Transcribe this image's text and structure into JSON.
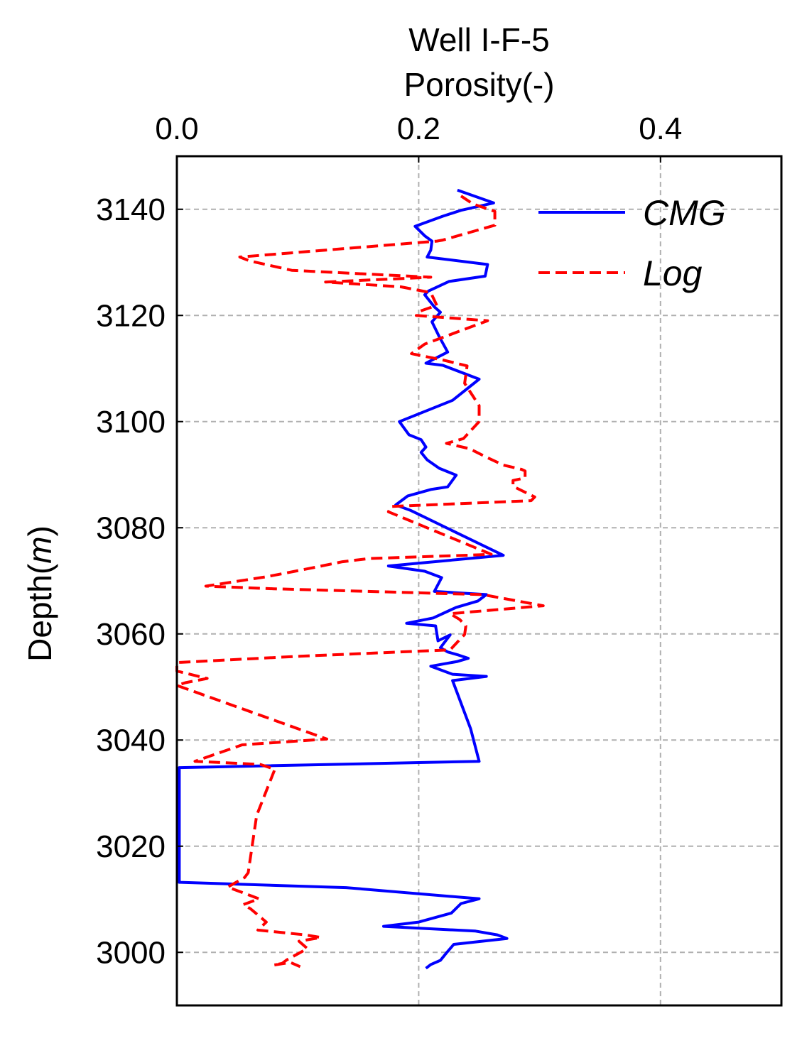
{
  "chart_data": {
    "type": "line",
    "title": "Well I-F-5",
    "xlabel": "Porosity(-)",
    "ylabel_prefix": "Depth(",
    "ylabel_unit": "m",
    "ylabel_suffix": ")",
    "xlim": [
      0.0,
      0.5
    ],
    "ylim": [
      2990,
      3150
    ],
    "x_axis_position": "top",
    "y_axis_inverted": true,
    "xticks": [
      "0.0",
      "0.2",
      "0.4"
    ],
    "xtick_values": [
      0.0,
      0.2,
      0.4
    ],
    "yticks": [
      "3000",
      "3020",
      "3040",
      "3060",
      "3080",
      "3100",
      "3120",
      "3140"
    ],
    "ytick_values": [
      3000,
      3020,
      3040,
      3060,
      3080,
      3100,
      3120,
      3140
    ],
    "grid": true,
    "legend_position": "top-right",
    "series": [
      {
        "name": "CMG",
        "color": "#0000ff",
        "dash": "solid",
        "points": [
          [
            0.232,
            3143.6
          ],
          [
            0.262,
            3141.2
          ],
          [
            0.235,
            3139.8
          ],
          [
            0.22,
            3138.7
          ],
          [
            0.197,
            3136.8
          ],
          [
            0.205,
            3135.0
          ],
          [
            0.211,
            3134.0
          ],
          [
            0.21,
            3132.3
          ],
          [
            0.207,
            3131.0
          ],
          [
            0.257,
            3129.6
          ],
          [
            0.255,
            3127.4
          ],
          [
            0.225,
            3126.4
          ],
          [
            0.208,
            3124.6
          ],
          [
            0.205,
            3123.9
          ],
          [
            0.213,
            3121.6
          ],
          [
            0.218,
            3120.6
          ],
          [
            0.211,
            3118.8
          ],
          [
            0.217,
            3116.0
          ],
          [
            0.224,
            3113.1
          ],
          [
            0.206,
            3111.0
          ],
          [
            0.22,
            3110.6
          ],
          [
            0.25,
            3108.0
          ],
          [
            0.228,
            3104.0
          ],
          [
            0.184,
            3100.0
          ],
          [
            0.192,
            3097.5
          ],
          [
            0.202,
            3096.6
          ],
          [
            0.206,
            3095.2
          ],
          [
            0.202,
            3094.2
          ],
          [
            0.207,
            3092.8
          ],
          [
            0.217,
            3091.2
          ],
          [
            0.231,
            3089.9
          ],
          [
            0.224,
            3087.7
          ],
          [
            0.21,
            3087.2
          ],
          [
            0.191,
            3086.0
          ],
          [
            0.181,
            3084.3
          ],
          [
            0.193,
            3083.3
          ],
          [
            0.27,
            3074.8
          ],
          [
            0.175,
            3072.8
          ],
          [
            0.205,
            3071.8
          ],
          [
            0.219,
            3070.6
          ],
          [
            0.213,
            3068.0
          ],
          [
            0.256,
            3067.4
          ],
          [
            0.249,
            3066.2
          ],
          [
            0.231,
            3065.0
          ],
          [
            0.212,
            3063.0
          ],
          [
            0.19,
            3062.0
          ],
          [
            0.214,
            3061.5
          ],
          [
            0.216,
            3058.7
          ],
          [
            0.226,
            3059.8
          ],
          [
            0.218,
            3057.4
          ],
          [
            0.224,
            3056.6
          ],
          [
            0.233,
            3056.0
          ],
          [
            0.241,
            3055.4
          ],
          [
            0.232,
            3054.8
          ],
          [
            0.21,
            3053.9
          ],
          [
            0.228,
            3052.4
          ],
          [
            0.256,
            3052.0
          ],
          [
            0.228,
            3051.2
          ],
          [
            0.243,
            3042.1
          ],
          [
            0.25,
            3036.0
          ],
          [
            0.002,
            3034.8
          ],
          [
            0.002,
            3013.2
          ],
          [
            0.14,
            3012.2
          ],
          [
            0.25,
            3010.1
          ],
          [
            0.235,
            3009.2
          ],
          [
            0.227,
            3007.4
          ],
          [
            0.2,
            3005.7
          ],
          [
            0.171,
            3004.9
          ],
          [
            0.247,
            3004.0
          ],
          [
            0.265,
            3003.3
          ],
          [
            0.273,
            3002.6
          ],
          [
            0.229,
            3001.5
          ],
          [
            0.223,
            2999.9
          ],
          [
            0.218,
            2998.5
          ],
          [
            0.21,
            2997.7
          ],
          [
            0.206,
            2997.0
          ]
        ]
      },
      {
        "name": "Log",
        "color": "#ff0000",
        "dash": "dashed",
        "points": [
          [
            0.235,
            3142.5
          ],
          [
            0.245,
            3141.0
          ],
          [
            0.263,
            3139.6
          ],
          [
            0.263,
            3137.0
          ],
          [
            0.22,
            3134.2
          ],
          [
            0.215,
            3134.0
          ],
          [
            0.052,
            3131.0
          ],
          [
            0.06,
            3130.3
          ],
          [
            0.095,
            3128.5
          ],
          [
            0.21,
            3127.2
          ],
          [
            0.123,
            3126.3
          ],
          [
            0.185,
            3125.4
          ],
          [
            0.21,
            3124.3
          ],
          [
            0.215,
            3121.9
          ],
          [
            0.201,
            3120.8
          ],
          [
            0.198,
            3120.0
          ],
          [
            0.257,
            3119.0
          ],
          [
            0.205,
            3114.6
          ],
          [
            0.194,
            3112.8
          ],
          [
            0.22,
            3111.6
          ],
          [
            0.24,
            3110.5
          ],
          [
            0.238,
            3107.2
          ],
          [
            0.25,
            3103.0
          ],
          [
            0.25,
            3100.0
          ],
          [
            0.237,
            3096.8
          ],
          [
            0.223,
            3095.9
          ],
          [
            0.242,
            3094.9
          ],
          [
            0.256,
            3093.3
          ],
          [
            0.27,
            3091.8
          ],
          [
            0.285,
            3091.0
          ],
          [
            0.288,
            3090.7
          ],
          [
            0.288,
            3089.4
          ],
          [
            0.278,
            3088.9
          ],
          [
            0.278,
            3087.8
          ],
          [
            0.296,
            3085.8
          ],
          [
            0.293,
            3085.1
          ],
          [
            0.177,
            3084.0
          ],
          [
            0.175,
            3083.0
          ],
          [
            0.26,
            3075.0
          ],
          [
            0.25,
            3074.9
          ],
          [
            0.159,
            3074.2
          ],
          [
            0.137,
            3073.6
          ],
          [
            0.111,
            3072.4
          ],
          [
            0.075,
            3070.8
          ],
          [
            0.024,
            3069.0
          ],
          [
            0.08,
            3068.5
          ],
          [
            0.253,
            3067.4
          ],
          [
            0.303,
            3065.3
          ],
          [
            0.226,
            3063.8
          ],
          [
            0.234,
            3062.7
          ],
          [
            0.239,
            3061.5
          ],
          [
            0.238,
            3059.9
          ],
          [
            0.226,
            3057.0
          ],
          [
            0.103,
            3055.8
          ],
          [
            0.0,
            3054.6
          ],
          [
            0.0,
            3053.0
          ],
          [
            0.025,
            3051.6
          ],
          [
            0.007,
            3050.8
          ],
          [
            0.0,
            3050.3
          ],
          [
            0.124,
            3040.2
          ],
          [
            0.054,
            3039.1
          ],
          [
            0.015,
            3036.0
          ],
          [
            0.069,
            3035.4
          ],
          [
            0.081,
            3034.5
          ],
          [
            0.066,
            3025.8
          ],
          [
            0.059,
            3015.0
          ],
          [
            0.056,
            3014.1
          ],
          [
            0.042,
            3012.3
          ],
          [
            0.068,
            3010.1
          ],
          [
            0.055,
            3009.0
          ],
          [
            0.061,
            3008.2
          ],
          [
            0.074,
            3005.7
          ],
          [
            0.067,
            3004.2
          ],
          [
            0.106,
            3003.3
          ],
          [
            0.119,
            3002.8
          ],
          [
            0.101,
            3002.1
          ],
          [
            0.108,
            3000.7
          ],
          [
            0.091,
            2998.6
          ],
          [
            0.087,
            2997.9
          ],
          [
            0.08,
            2997.6
          ],
          [
            0.094,
            2998.1
          ],
          [
            0.102,
            2997.3
          ]
        ]
      }
    ]
  }
}
